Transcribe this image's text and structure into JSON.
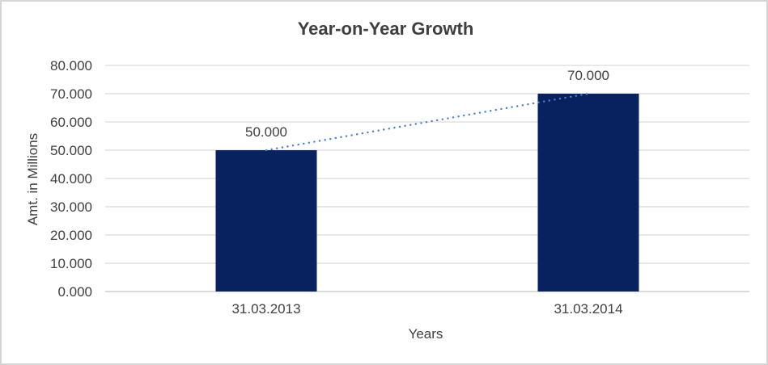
{
  "frame": {
    "background": "#ffffff",
    "border_color": "#d5d5d5"
  },
  "chart_data": {
    "type": "bar",
    "title": "Year-on-Year Growth",
    "xlabel": "Years",
    "ylabel": "Amt. in Millions",
    "categories": [
      "31.03.2013",
      "31.03.2014"
    ],
    "values": [
      50,
      70
    ],
    "value_labels": [
      "50.000",
      "70.000"
    ],
    "ylim": [
      0,
      80
    ],
    "y_ticks": [
      {
        "value": 0,
        "label": "0.000"
      },
      {
        "value": 10,
        "label": "10.000"
      },
      {
        "value": 20,
        "label": "20.000"
      },
      {
        "value": 30,
        "label": "30.000"
      },
      {
        "value": 40,
        "label": "40.000"
      },
      {
        "value": 50,
        "label": "50.000"
      },
      {
        "value": 60,
        "label": "60.000"
      },
      {
        "value": 70,
        "label": "70.000"
      },
      {
        "value": 80,
        "label": "80.000"
      }
    ],
    "grid": true,
    "legend": "none",
    "bar_color": "#082260",
    "trendline": {
      "type": "linear",
      "style": "dotted",
      "color": "#4e82c6"
    },
    "grid_color": "#d9d9d9",
    "axis_line_color": "#cfcfcf",
    "text_color": "#404040",
    "title_color": "#3f3f3f"
  }
}
